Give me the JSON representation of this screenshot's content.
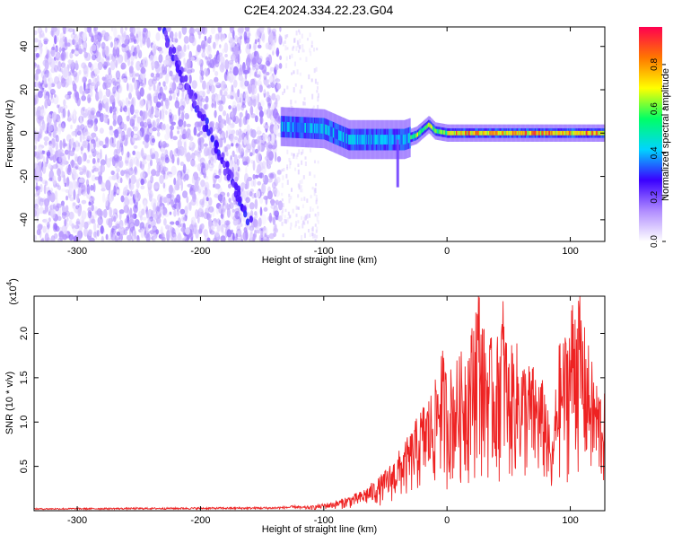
{
  "title": "C2E4.2024.334.22.23.G04",
  "chart_data": [
    {
      "type": "heatmap",
      "xlabel": "Height of straight line (km)",
      "ylabel": "Frequency (Hz)",
      "xlim": [
        -335,
        128
      ],
      "ylim": [
        -50,
        49
      ],
      "xticks": [
        -300,
        -200,
        -100,
        0,
        100
      ],
      "yticks": [
        -40,
        -20,
        0,
        20,
        40
      ],
      "colorbar": {
        "label": "Normalized spectral amplitude",
        "range": [
          0.0,
          0.97
        ],
        "ticks": [
          "0.0",
          "0.2",
          "0.4",
          "0.6",
          "0.8"
        ],
        "tick_values": [
          0.0,
          0.2,
          0.4,
          0.6,
          0.8
        ],
        "colormap": [
          "#ffffff",
          "#b08cff",
          "#3a00ff",
          "#00d4ff",
          "#00ff66",
          "#ffff00",
          "#ff7700",
          "#ff0050"
        ]
      },
      "features": {
        "noise_region_x": [
          -335,
          -135
        ],
        "sparse_noise_x": [
          -135,
          -105
        ],
        "diagonal_trace": {
          "x": [
            -232,
            -160
          ],
          "y": [
            48,
            -40
          ]
        },
        "signal_ridge": [
          {
            "x": -135,
            "y": 3
          },
          {
            "x": -100,
            "y": 2
          },
          {
            "x": -80,
            "y": -3
          },
          {
            "x": -50,
            "y": -3
          },
          {
            "x": -35,
            "y": -3
          },
          {
            "x": -25,
            "y": -1
          },
          {
            "x": -15,
            "y": 4
          },
          {
            "x": -10,
            "y": 1
          },
          {
            "x": 0,
            "y": 0
          },
          {
            "x": 50,
            "y": 0
          },
          {
            "x": 100,
            "y": 0
          },
          {
            "x": 128,
            "y": 0
          }
        ],
        "spike": {
          "x": -40,
          "y_from": -3,
          "y_to": -25
        }
      }
    },
    {
      "type": "line",
      "xlabel": "Height of straight line (km)",
      "ylabel": "SNR (10 * v/v)",
      "y_multiplier_label": "(x10",
      "y_multiplier_exp": "4",
      "y_multiplier_close": ")",
      "xlim": [
        -335,
        128
      ],
      "ylim": [
        0,
        2.42
      ],
      "xticks": [
        -300,
        -200,
        -100,
        0,
        100
      ],
      "yticks": [
        0.5,
        1.0,
        1.5,
        2.0
      ],
      "ytick_labels": [
        "0.5",
        "1.0",
        "1.5",
        "2.0"
      ],
      "series": [
        {
          "color": "#ee2222",
          "envelope_x": [
            -335,
            -140,
            -110,
            -90,
            -70,
            -55,
            -45,
            -40,
            -30,
            -20,
            -10,
            -5,
            0,
            10,
            20,
            25,
            30,
            40,
            45,
            50,
            55,
            60,
            70,
            80,
            85,
            90,
            95,
            100,
            105,
            110,
            115,
            120,
            128
          ],
          "envelope_y": [
            0.02,
            0.03,
            0.05,
            0.1,
            0.2,
            0.35,
            0.5,
            0.6,
            0.8,
            1.1,
            1.3,
            1.75,
            1.45,
            1.6,
            1.9,
            2.45,
            1.9,
            1.7,
            2.3,
            1.6,
            1.8,
            1.6,
            1.5,
            1.3,
            0.6,
            1.7,
            1.8,
            2.1,
            2.45,
            2.0,
            1.7,
            1.4,
            1.2
          ]
        }
      ]
    }
  ]
}
